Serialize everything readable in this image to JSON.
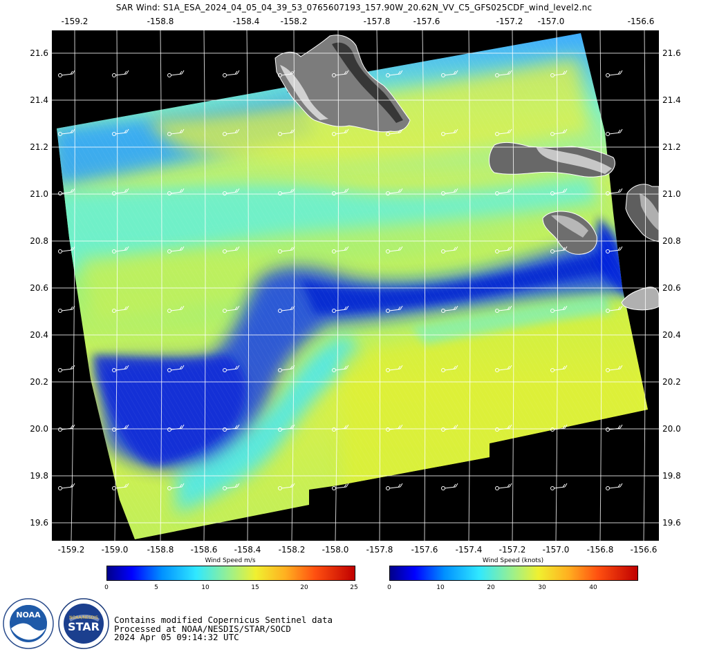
{
  "title": "SAR Wind: S1A_ESA_2024_04_05_04_39_53_0765607193_157.90W_20.62N_VV_C5_GFS025CDF_wind_level2.nc",
  "map": {
    "top_lon_ticks": [
      "-159.2",
      "-158.8",
      "-158.4",
      "-158.2",
      "-157.8",
      "-157.6",
      "-157.2",
      "-157.0",
      "-156.6"
    ],
    "bottom_lon_ticks": [
      "-159.2",
      "-159.0",
      "-158.8",
      "-158.6",
      "-158.4",
      "-158.2",
      "-158.0",
      "-157.8",
      "-157.6",
      "-157.4",
      "-157.2",
      "-157.0",
      "-156.8",
      "-156.6"
    ],
    "lat_ticks": [
      "21.6",
      "21.4",
      "21.2",
      "21.0",
      "20.8",
      "20.6",
      "20.4",
      "20.2",
      "20.0",
      "19.8",
      "19.6"
    ],
    "islands": [
      "Oahu",
      "Molokai",
      "Lanai",
      "Maui",
      "Kahoolawe"
    ]
  },
  "colorbars": {
    "ms": {
      "title": "Wind Speed m/s",
      "labels": [
        "0",
        "5",
        "10",
        "15",
        "20",
        "25"
      ]
    },
    "knots": {
      "title": "Wind Speed (knots)",
      "labels": [
        "0",
        "10",
        "20",
        "30",
        "40"
      ]
    }
  },
  "logos": {
    "noaa": "NOAA",
    "star": "STAR",
    "nesdis": "NOAA/NESDIS"
  },
  "credits": {
    "line1": "Contains modified Copernicus Sentinel data",
    "line2": "Processed at NOAA/NESDIS/STAR/SOCD",
    "line3": " 2024 Apr 05 09:14:32 UTC"
  },
  "colors": {
    "land": "#8a8a8a",
    "background": "#000000",
    "low_wind": "#0022dd",
    "mid_wind": "#22e0ff",
    "high_wind": "#e8f020"
  }
}
